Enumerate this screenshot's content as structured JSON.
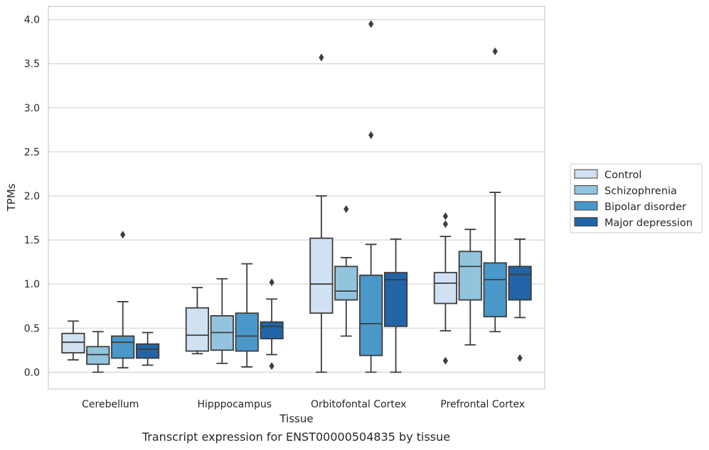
{
  "caption": "Transcript expression for ENST00000504835 by tissue",
  "chart_data": {
    "type": "boxplot",
    "xlabel": "Tissue",
    "ylabel": "TPMs",
    "ylim": [
      -0.19,
      4.15
    ],
    "yticks": [
      0.0,
      0.5,
      1.0,
      1.5,
      2.0,
      2.5,
      3.0,
      3.5,
      4.0
    ],
    "ytick_labels": [
      "0.0",
      "0.5",
      "1.0",
      "1.5",
      "2.0",
      "2.5",
      "3.0",
      "3.5",
      "4.0"
    ],
    "grid": true,
    "legend_position": "right",
    "categories": [
      "Cerebellum",
      "Hipppocampus",
      "Orbitofontal Cortex",
      "Prefrontal Cortex"
    ],
    "series": [
      {
        "name": "Control",
        "color": "#cfe1f2",
        "boxes": [
          {
            "whislo": 0.14,
            "q1": 0.22,
            "med": 0.34,
            "q3": 0.44,
            "whishi": 0.58,
            "fliers": []
          },
          {
            "whislo": 0.21,
            "q1": 0.24,
            "med": 0.42,
            "q3": 0.73,
            "whishi": 0.96,
            "fliers": []
          },
          {
            "whislo": 0.0,
            "q1": 0.67,
            "med": 1.0,
            "q3": 1.52,
            "whishi": 2.0,
            "fliers": [
              3.57
            ]
          },
          {
            "whislo": 0.47,
            "q1": 0.78,
            "med": 1.01,
            "q3": 1.13,
            "whishi": 1.54,
            "fliers": [
              1.77,
              1.68,
              0.13
            ]
          }
        ]
      },
      {
        "name": "Schizophrenia",
        "color": "#93c4de",
        "boxes": [
          {
            "whislo": 0.0,
            "q1": 0.09,
            "med": 0.2,
            "q3": 0.29,
            "whishi": 0.46,
            "fliers": []
          },
          {
            "whislo": 0.1,
            "q1": 0.25,
            "med": 0.45,
            "q3": 0.64,
            "whishi": 1.06,
            "fliers": []
          },
          {
            "whislo": 0.41,
            "q1": 0.82,
            "med": 0.92,
            "q3": 1.2,
            "whishi": 1.3,
            "fliers": [
              1.85
            ]
          },
          {
            "whislo": 0.31,
            "q1": 0.82,
            "med": 1.2,
            "q3": 1.37,
            "whishi": 1.62,
            "fliers": []
          }
        ]
      },
      {
        "name": "Bipolar disorder",
        "color": "#4a98c9",
        "boxes": [
          {
            "whislo": 0.05,
            "q1": 0.16,
            "med": 0.34,
            "q3": 0.41,
            "whishi": 0.8,
            "fliers": [
              1.56
            ]
          },
          {
            "whislo": 0.06,
            "q1": 0.24,
            "med": 0.41,
            "q3": 0.67,
            "whishi": 1.23,
            "fliers": []
          },
          {
            "whislo": 0.0,
            "q1": 0.19,
            "med": 0.55,
            "q3": 1.1,
            "whishi": 1.45,
            "fliers": [
              3.95,
              2.69
            ]
          },
          {
            "whislo": 0.46,
            "q1": 0.63,
            "med": 1.05,
            "q3": 1.24,
            "whishi": 2.04,
            "fliers": [
              3.64
            ]
          }
        ]
      },
      {
        "name": "Major depression",
        "color": "#2264a6",
        "boxes": [
          {
            "whislo": 0.08,
            "q1": 0.16,
            "med": 0.26,
            "q3": 0.32,
            "whishi": 0.45,
            "fliers": []
          },
          {
            "whislo": 0.2,
            "q1": 0.38,
            "med": 0.52,
            "q3": 0.57,
            "whishi": 0.83,
            "fliers": [
              1.02,
              0.07
            ]
          },
          {
            "whislo": 0.0,
            "q1": 0.52,
            "med": 1.05,
            "q3": 1.13,
            "whishi": 1.51,
            "fliers": []
          },
          {
            "whislo": 0.62,
            "q1": 0.82,
            "med": 1.11,
            "q3": 1.2,
            "whishi": 1.51,
            "fliers": [
              0.16
            ]
          }
        ]
      }
    ]
  }
}
